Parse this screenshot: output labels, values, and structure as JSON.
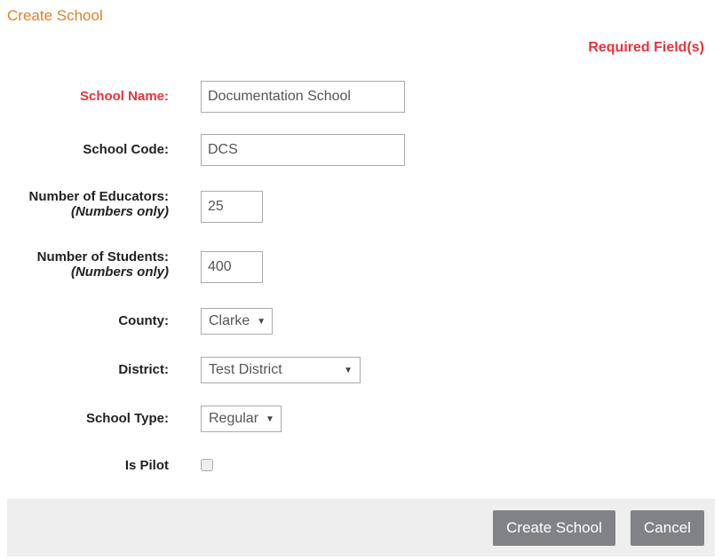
{
  "page": {
    "title": "Create School",
    "required_note": "Required Field(s)"
  },
  "form": {
    "school_name": {
      "label": "School Name:",
      "value": "Documentation School"
    },
    "school_code": {
      "label": "School Code:",
      "value": "DCS"
    },
    "educators": {
      "label": "Number of Educators:",
      "hint": "(Numbers only)",
      "value": "25"
    },
    "students": {
      "label": "Number of Students:",
      "hint": "(Numbers only)",
      "value": "400"
    },
    "county": {
      "label": "County:",
      "value": "Clarke"
    },
    "district": {
      "label": "District:",
      "value": "Test District"
    },
    "school_type": {
      "label": "School Type:",
      "value": "Regular"
    },
    "is_pilot": {
      "label": "Is Pilot",
      "checked": false
    }
  },
  "actions": {
    "create": "Create School",
    "cancel": "Cancel"
  }
}
